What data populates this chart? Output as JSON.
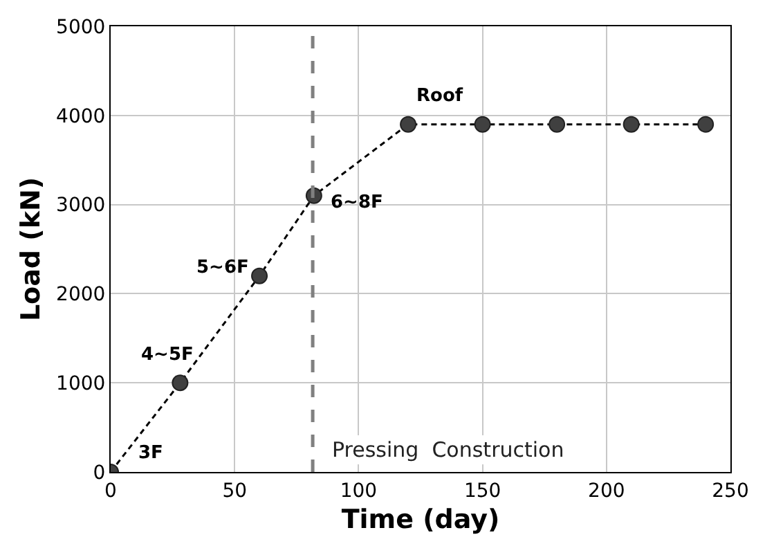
{
  "chart_data": {
    "type": "line",
    "xlabel": "Time (day)",
    "ylabel": "Load (kN)",
    "x": [
      0,
      28,
      60,
      82,
      120,
      150,
      180,
      210,
      240
    ],
    "series": [
      {
        "color": "#000000",
        "values": [
          0,
          1000,
          2200,
          3100,
          3900,
          3900,
          3900,
          3900,
          3900
        ],
        "marker": "circle",
        "line_style": "dashed"
      }
    ],
    "xlim": [
      0,
      250
    ],
    "xticks": [
      0,
      50,
      100,
      150,
      200,
      250
    ],
    "ylim": [
      0,
      5000
    ],
    "yticks": [
      0,
      1000,
      2000,
      3000,
      4000,
      5000
    ],
    "grid": true,
    "ref_lines": [
      {
        "axis": "x",
        "value": 81.5,
        "label": "Pressing  Construction",
        "color": "#808080",
        "line_style": "dashed"
      }
    ],
    "annotations": [
      {
        "text": "3F",
        "x": 0,
        "y": 0
      },
      {
        "text": "4~5F",
        "x": 28,
        "y": 1000
      },
      {
        "text": "5~6F",
        "x": 60,
        "y": 2200
      },
      {
        "text": "6~8F",
        "x": 82,
        "y": 3100
      },
      {
        "text": "Roof",
        "x": 120,
        "y": 3900
      }
    ]
  }
}
